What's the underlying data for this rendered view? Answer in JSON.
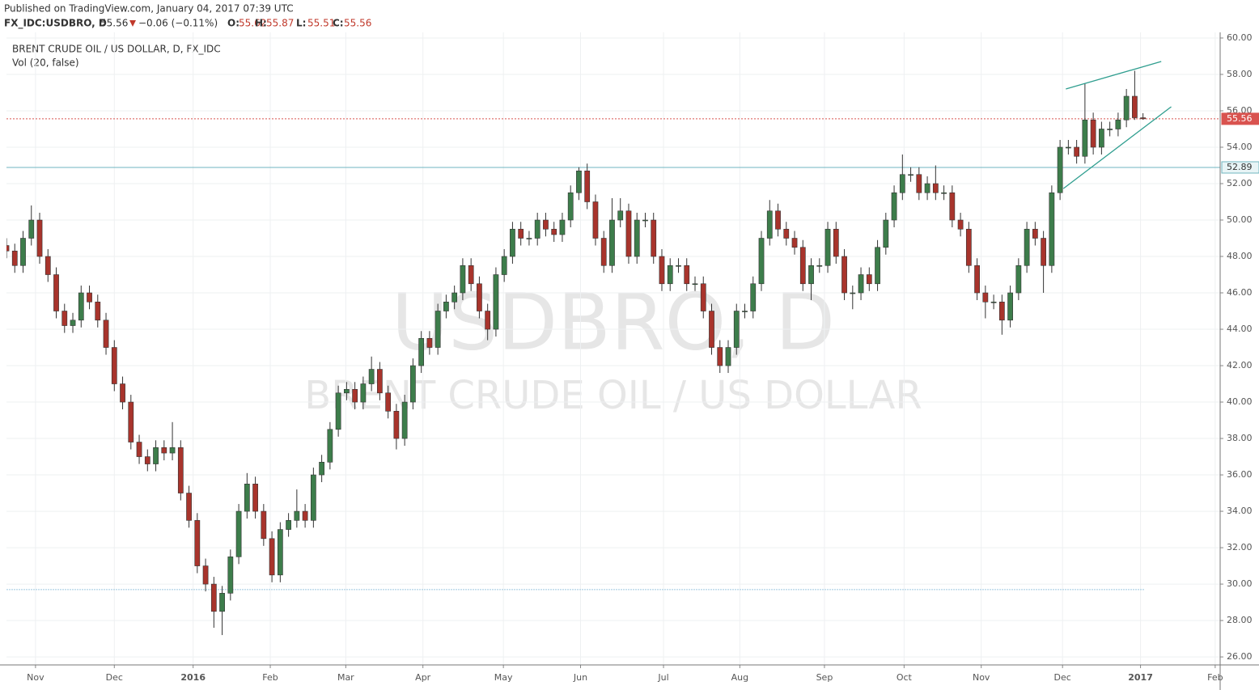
{
  "header": {
    "published": "Published on TradingView.com, January 04, 2017 07:39 UTC",
    "symbol": "FX_IDC:USDBRO, D",
    "price": 55.56,
    "change": "−0.06 (−0.11%)",
    "ohlc": [
      {
        "label": "O:",
        "value": 55.62
      },
      {
        "label": "H:",
        "value": 55.87
      },
      {
        "label": "L:",
        "value": 55.51
      },
      {
        "label": "C:",
        "value": 55.56
      }
    ]
  },
  "chart_data": {
    "type": "candlestick",
    "title": "BRENT CRUDE OIL / US DOLLAR, D, FX_IDC",
    "subtitle": "Vol (20, false)",
    "watermark": [
      "USDBRO, D",
      "BRENT CRUDE OIL / US DOLLAR"
    ],
    "up_color": "#3d7d4b",
    "down_color": "#a8342c",
    "grid": true,
    "open": [
      48.6,
      48.3,
      47.5,
      49,
      50,
      48,
      47,
      45,
      44.2,
      44.5,
      46,
      45.5,
      44.5,
      43,
      41,
      40,
      37.8,
      37,
      36.6,
      37.5,
      37.2,
      37.5,
      35,
      33.5,
      31,
      30,
      28.5,
      29.5,
      31.5,
      34,
      35.5,
      34,
      32.5,
      30.5,
      33,
      33.5,
      34,
      33.5,
      36,
      36.7,
      38.5,
      40.5,
      40.7,
      40,
      41,
      41.8,
      40.5,
      39.5,
      38,
      40,
      42,
      43.5,
      43,
      45,
      45.5,
      46,
      47.5,
      46.5,
      45,
      44,
      47,
      48,
      49.5,
      49,
      49,
      50,
      49.5,
      49.2,
      50,
      51.5,
      52.7,
      51,
      49,
      47.5,
      50,
      50.5,
      48,
      50,
      50,
      48,
      46.5,
      47.5,
      47.5,
      46.5,
      46.5,
      45,
      43,
      42,
      43,
      45,
      45,
      46.5,
      49,
      50.5,
      49.5,
      49,
      48.5,
      46.5,
      47.5,
      47.5,
      49.5,
      48,
      46,
      46,
      47,
      46.5,
      48.5,
      50,
      51.5,
      52.5,
      52.5,
      51.5,
      52,
      51.5,
      51.5,
      50,
      49.5,
      47.5,
      46,
      45.5,
      45.5,
      44.5,
      46,
      47.5,
      49.5,
      49,
      47.5,
      51.5,
      54,
      54,
      53.5,
      55.5,
      54,
      55,
      55,
      55.5,
      56.8,
      55.62
    ],
    "high": [
      49,
      48.7,
      49.4,
      50.8,
      50.4,
      48.4,
      47.4,
      45.4,
      44.9,
      46.4,
      46.4,
      45.9,
      44.9,
      43.4,
      41.4,
      40.4,
      38.2,
      37.4,
      37.9,
      37.9,
      38.9,
      37.9,
      35.4,
      33.9,
      31.4,
      30.4,
      29.9,
      31.9,
      34.4,
      36.1,
      35.9,
      34.4,
      32.9,
      33.4,
      33.9,
      35.2,
      34.4,
      36.4,
      37.1,
      38.9,
      40.9,
      41.1,
      41.1,
      41.4,
      42.5,
      42.2,
      40.9,
      39.9,
      40.4,
      42.4,
      43.9,
      43.9,
      45.4,
      45.9,
      46.4,
      47.9,
      47.9,
      46.9,
      45.4,
      47.4,
      48.4,
      49.9,
      49.9,
      49.4,
      50.4,
      50.4,
      49.9,
      50.4,
      51.9,
      52.9,
      53.1,
      51.4,
      49.4,
      51.2,
      51.2,
      50.9,
      50.4,
      50.4,
      50.4,
      48.4,
      47.9,
      47.9,
      47.9,
      46.9,
      46.9,
      45.4,
      43.4,
      43.4,
      45.4,
      45.4,
      46.9,
      49.4,
      51.1,
      50.9,
      49.9,
      49.4,
      48.9,
      47.9,
      47.9,
      49.9,
      49.9,
      48.4,
      46.4,
      47.4,
      47.4,
      48.9,
      50.4,
      51.9,
      53.6,
      52.9,
      52.9,
      52.4,
      53,
      51.9,
      51.9,
      50.4,
      49.9,
      47.9,
      46.4,
      45.9,
      45.9,
      46.4,
      47.9,
      49.9,
      49.9,
      49.4,
      51.9,
      54.4,
      54.4,
      54.4,
      57.5,
      55.9,
      55.4,
      55.4,
      55.9,
      57.2,
      58.2,
      55.87
    ],
    "low": [
      47.9,
      47.1,
      47.1,
      48.6,
      47.6,
      46.6,
      44.6,
      43.8,
      43.8,
      44.1,
      45.1,
      44.1,
      42.6,
      40.6,
      39.6,
      37.4,
      36.6,
      36.2,
      36.2,
      36.8,
      36.8,
      34.6,
      33.1,
      30.6,
      29.6,
      27.6,
      27.2,
      29.1,
      31.1,
      33.6,
      33.6,
      32.1,
      30.1,
      30.1,
      32.6,
      33.1,
      33.1,
      33.1,
      35.6,
      36.3,
      38.1,
      40.1,
      39.6,
      39.6,
      40.6,
      40.1,
      39.1,
      37.4,
      37.6,
      39.6,
      41.6,
      42.6,
      42.6,
      44.6,
      45.1,
      45.6,
      46.1,
      44.6,
      43.4,
      43.6,
      46.6,
      47.6,
      48.6,
      48.6,
      48.6,
      49.1,
      48.8,
      48.8,
      49.6,
      51.1,
      50.6,
      48.6,
      47.1,
      47.1,
      49.6,
      47.6,
      47.6,
      49.6,
      47.6,
      46.1,
      46.1,
      47.1,
      46.1,
      46.1,
      44.6,
      42.6,
      41.6,
      41.6,
      42.6,
      44.6,
      44.6,
      46.1,
      48.6,
      49.1,
      48.6,
      48.1,
      46.1,
      45.6,
      47.1,
      47.1,
      47.6,
      45.6,
      45.1,
      45.6,
      46.1,
      46.1,
      48.1,
      49.6,
      51.1,
      52.1,
      51.1,
      51.1,
      51.1,
      51.1,
      49.6,
      49.1,
      47.1,
      45.6,
      44.6,
      45.1,
      43.7,
      44.1,
      45.6,
      47.1,
      48.6,
      46,
      47.1,
      51.1,
      53.6,
      53.1,
      53.1,
      53.6,
      53.6,
      54.6,
      54.6,
      55.1,
      55.5,
      55.51
    ],
    "close": [
      48.3,
      47.5,
      49,
      50,
      48,
      47,
      45,
      44.2,
      44.5,
      46,
      45.5,
      44.5,
      43,
      41,
      40,
      37.8,
      37,
      36.6,
      37.5,
      37.2,
      37.5,
      35,
      33.5,
      31,
      30,
      28.5,
      29.5,
      31.5,
      34,
      35.5,
      34,
      32.5,
      30.5,
      33,
      33.5,
      34,
      33.5,
      36,
      36.7,
      38.5,
      40.5,
      40.7,
      40,
      41,
      41.8,
      40.5,
      39.5,
      38,
      40,
      42,
      43.5,
      43,
      45,
      45.5,
      46,
      47.5,
      46.5,
      45,
      44,
      47,
      48,
      49.5,
      49,
      49,
      50,
      49.5,
      49.2,
      50,
      51.5,
      52.7,
      51,
      49,
      47.5,
      50,
      50.5,
      48,
      50,
      50,
      48,
      46.5,
      47.5,
      47.5,
      46.5,
      46.5,
      45,
      43,
      42,
      43,
      45,
      45,
      46.5,
      49,
      50.5,
      49.5,
      49,
      48.5,
      46.5,
      47.5,
      47.5,
      49.5,
      48,
      46,
      46,
      47,
      46.5,
      48.5,
      50,
      51.5,
      52.5,
      52.5,
      51.5,
      52,
      51.5,
      51.5,
      50,
      49.5,
      47.5,
      46,
      45.5,
      45.5,
      44.5,
      46,
      47.5,
      49.5,
      49,
      47.5,
      51.5,
      54,
      54,
      53.5,
      55.5,
      54,
      55,
      55,
      55.5,
      56.8,
      55.62,
      55.56
    ],
    "xlim": [
      0,
      146.3
    ],
    "xticks": [
      {
        "value": 3.5,
        "label": "Nov"
      },
      {
        "value": 13,
        "label": "Dec"
      },
      {
        "value": 22.5,
        "label": "2016"
      },
      {
        "value": 31.8,
        "label": "Feb"
      },
      {
        "value": 40.9,
        "label": "Mar"
      },
      {
        "value": 50.2,
        "label": "Apr"
      },
      {
        "value": 59.9,
        "label": "May"
      },
      {
        "value": 69.2,
        "label": "Jun"
      },
      {
        "value": 79.2,
        "label": "Jul"
      },
      {
        "value": 88.4,
        "label": "Aug"
      },
      {
        "value": 98.6,
        "label": "Sep"
      },
      {
        "value": 108.2,
        "label": "Oct"
      },
      {
        "value": 117.5,
        "label": "Nov"
      },
      {
        "value": 127.3,
        "label": "Dec"
      },
      {
        "value": 136.7,
        "label": "2017"
      },
      {
        "value": 145.7,
        "label": "Feb"
      }
    ],
    "ylim": [
      25.56,
      60.31
    ],
    "yticks": [
      {
        "value": 26,
        "label": "26.00"
      },
      {
        "value": 28,
        "label": "28.00"
      },
      {
        "value": 30,
        "label": "30.00"
      },
      {
        "value": 32,
        "label": "32.00"
      },
      {
        "value": 34,
        "label": "34.00"
      },
      {
        "value": 36,
        "label": "36.00"
      },
      {
        "value": 38,
        "label": "38.00"
      },
      {
        "value": 40,
        "label": "40.00"
      },
      {
        "value": 42,
        "label": "42.00"
      },
      {
        "value": 44,
        "label": "44.00"
      },
      {
        "value": 46,
        "label": "46.00"
      },
      {
        "value": 48,
        "label": "48.00"
      },
      {
        "value": 50,
        "label": "50.00"
      },
      {
        "value": 52,
        "label": "52.00"
      },
      {
        "value": 54,
        "label": "54.00"
      },
      {
        "value": 56,
        "label": "56.00"
      },
      {
        "value": 58,
        "label": "58.00"
      },
      {
        "value": 60,
        "label": "60.00"
      }
    ],
    "hlines": [
      {
        "value": 55.56,
        "color": "#d9534f",
        "dash": "2 2",
        "label_fill": "#d9534f",
        "label_color": "#ffffff"
      },
      {
        "value": 52.89,
        "color": "#6fb6c0",
        "dash": "none",
        "label_fill": "#e8f4f6",
        "label_color": "#333333"
      },
      {
        "value": 29.7,
        "color": "#9cc8e0",
        "dash": "2 1",
        "xmax": 137.2
      }
    ],
    "trendlines": [
      {
        "x": [
          127.7,
          139.2
        ],
        "y": [
          57.2,
          58.71
        ],
        "color": "#2f9e8f"
      },
      {
        "x": [
          127.4,
          140.4
        ],
        "y": [
          51.73,
          56.22
        ],
        "color": "#2f9e8f"
      }
    ]
  }
}
